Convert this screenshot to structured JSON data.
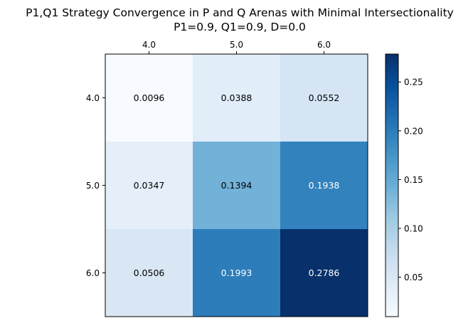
{
  "chart_data": {
    "type": "heatmap",
    "title": "P1,Q1 Strategy Convergence in P and Q Arenas with Minimal Intersectionality",
    "subtitle": "P1=0.9, Q1=0.9, D=0.0",
    "x_ticks": [
      "4.0",
      "5.0",
      "6.0"
    ],
    "y_ticks": [
      "4.0",
      "5.0",
      "6.0"
    ],
    "x_axis_position": "top",
    "values": [
      [
        0.0096,
        0.0388,
        0.0552
      ],
      [
        0.0347,
        0.1394,
        0.1938
      ],
      [
        0.0506,
        0.1993,
        0.2786
      ]
    ],
    "value_labels": [
      [
        "0.0096",
        "0.0388",
        "0.0552"
      ],
      [
        "0.0347",
        "0.1394",
        "0.1938"
      ],
      [
        "0.0506",
        "0.1993",
        "0.2786"
      ]
    ],
    "colormap": "Blues",
    "colorbar": {
      "range": [
        0.0096,
        0.2786
      ],
      "ticks": [
        0.05,
        0.1,
        0.15,
        0.2,
        0.25
      ],
      "tick_labels": [
        "0.05",
        "0.10",
        "0.15",
        "0.20",
        "0.25"
      ]
    },
    "grid": false
  }
}
